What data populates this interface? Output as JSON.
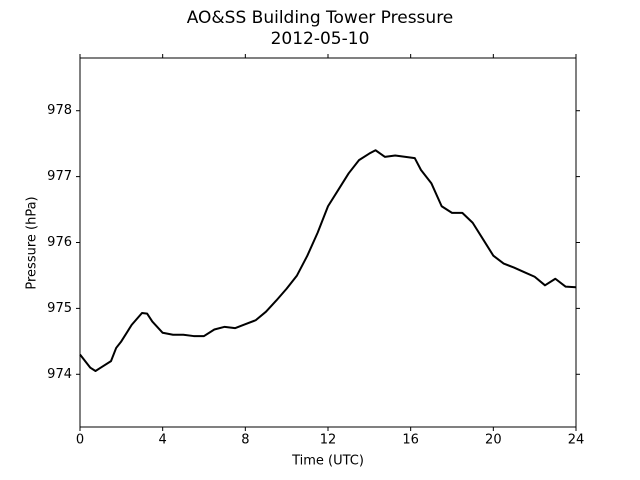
{
  "chart_data": {
    "type": "line",
    "title": "AO&SS Building Tower Pressure",
    "subtitle": "2012-05-10",
    "x_label": "Time (UTC)",
    "y_label": "Pressure (hPa)",
    "xlim": [
      0,
      24
    ],
    "xticks": [
      0,
      4,
      8,
      12,
      16,
      20,
      24
    ],
    "ylim": [
      973.2,
      978.8
    ],
    "yticks": [
      974,
      975,
      976,
      977,
      978
    ],
    "grid": false,
    "series": [
      {
        "name": "Pressure",
        "color": "#000000",
        "x": [
          0,
          0.5,
          0.75,
          1.0,
          1.5,
          1.75,
          2.0,
          2.5,
          3.0,
          3.25,
          3.5,
          4.0,
          4.5,
          5.0,
          5.5,
          6.0,
          6.5,
          7.0,
          7.5,
          8.0,
          8.5,
          9.0,
          9.5,
          10.0,
          10.5,
          11.0,
          11.5,
          12.0,
          12.5,
          13.0,
          13.5,
          14.0,
          14.3,
          14.75,
          15.25,
          15.75,
          16.2,
          16.5,
          17.0,
          17.5,
          18.0,
          18.5,
          19.0,
          19.5,
          20.0,
          20.5,
          21.0,
          21.5,
          22.0,
          22.5,
          23.0,
          23.5,
          24.0
        ],
        "values": [
          974.3,
          974.1,
          974.05,
          974.1,
          974.2,
          974.4,
          974.5,
          974.75,
          974.93,
          974.92,
          974.8,
          974.63,
          974.6,
          974.6,
          974.58,
          974.58,
          974.68,
          974.72,
          974.7,
          974.76,
          974.82,
          974.95,
          975.12,
          975.3,
          975.5,
          975.8,
          976.15,
          976.55,
          976.8,
          977.05,
          977.25,
          977.35,
          977.4,
          977.3,
          977.32,
          977.3,
          977.28,
          977.1,
          976.9,
          976.55,
          976.45,
          976.45,
          976.3,
          976.05,
          975.8,
          975.68,
          975.62,
          975.55,
          975.48,
          975.35,
          975.45,
          975.33,
          975.32
        ]
      }
    ]
  }
}
